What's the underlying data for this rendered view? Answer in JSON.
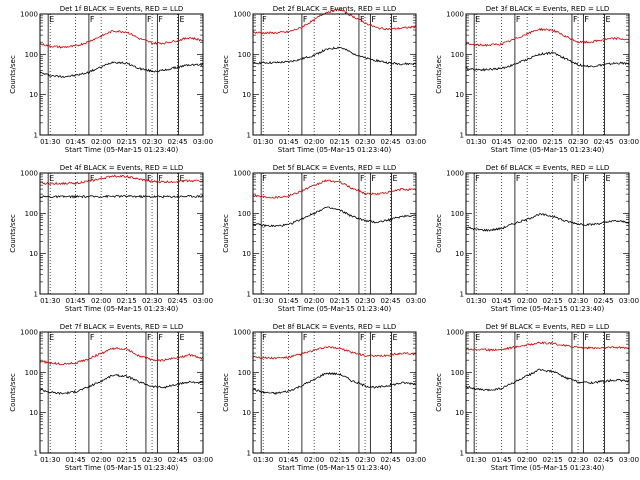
{
  "figure": {
    "xlabel": "Start Time (05-Mar-15 01:23:40)",
    "ylabel": "Counts/sec"
  },
  "chart_data": [
    {
      "type": "line",
      "title": "Det 1f BLACK = Events, RED = LLD",
      "xlabel": "Start Time (05-Mar-15 01:23:40)",
      "ylabel": "Counts/sec",
      "yscale": "log",
      "xlim": [
        "01:24",
        "03:00"
      ],
      "ylim": [
        1,
        1000
      ],
      "x_ticks": [
        "01:30",
        "01:45",
        "02:00",
        "02:15",
        "02:30",
        "02:45",
        "03:00"
      ],
      "y_ticks": [
        "1",
        "10",
        "100",
        "1000"
      ],
      "x": [
        "01:24",
        "01:30",
        "01:37",
        "01:45",
        "01:52",
        "02:00",
        "02:07",
        "02:15",
        "02:22",
        "02:30",
        "02:37",
        "02:45",
        "02:52",
        "03:00"
      ],
      "series": [
        {
          "color": "#000000",
          "values": [
            35,
            30,
            28,
            30,
            35,
            48,
            65,
            60,
            45,
            38,
            40,
            48,
            55,
            55
          ]
        },
        {
          "color": "#d40000",
          "values": [
            180,
            160,
            150,
            160,
            200,
            280,
            380,
            360,
            250,
            190,
            190,
            220,
            260,
            220
          ]
        }
      ],
      "markers": [
        "E",
        "F",
        "F",
        "F",
        "E"
      ],
      "grid": false,
      "legend": "none"
    },
    {
      "type": "line",
      "title": "Det 2f BLACK = Events, RED = LLD",
      "xlabel": "Start Time (05-Mar-15 01:23:40)",
      "ylabel": "Counts/sec",
      "yscale": "log",
      "xlim": [
        "01:24",
        "03:00"
      ],
      "ylim": [
        1,
        1000
      ],
      "x_ticks": [
        "01:30",
        "01:45",
        "02:00",
        "02:15",
        "02:30",
        "02:45",
        "03:00"
      ],
      "y_ticks": [
        "1",
        "10",
        "100",
        "1000"
      ],
      "x": [
        "01:24",
        "01:30",
        "01:37",
        "01:45",
        "01:52",
        "02:00",
        "02:07",
        "02:15",
        "02:22",
        "02:30",
        "02:37",
        "02:45",
        "02:52",
        "03:00"
      ],
      "series": [
        {
          "color": "#000000",
          "values": [
            60,
            62,
            62,
            65,
            75,
            95,
            130,
            150,
            110,
            80,
            70,
            60,
            58,
            58
          ]
        },
        {
          "color": "#d40000",
          "values": [
            350,
            340,
            340,
            360,
            450,
            700,
            1100,
            1300,
            900,
            600,
            450,
            420,
            450,
            480
          ]
        }
      ],
      "markers": [
        "F",
        "F",
        "F",
        "F",
        "E"
      ],
      "grid": false,
      "legend": "none"
    },
    {
      "type": "line",
      "title": "Det 3f BLACK = Events, RED = LLD",
      "xlabel": "Start Time (05-Mar-15 01:23:40)",
      "ylabel": "Counts/sec",
      "yscale": "log",
      "xlim": [
        "01:24",
        "03:00"
      ],
      "ylim": [
        1,
        1000
      ],
      "x_ticks": [
        "01:30",
        "01:45",
        "02:00",
        "02:15",
        "02:30",
        "02:45",
        "03:00"
      ],
      "y_ticks": [
        "1",
        "10",
        "100",
        "1000"
      ],
      "x": [
        "01:24",
        "01:30",
        "01:37",
        "01:45",
        "01:52",
        "02:00",
        "02:07",
        "02:15",
        "02:22",
        "02:30",
        "02:37",
        "02:45",
        "02:52",
        "03:00"
      ],
      "series": [
        {
          "color": "#000000",
          "values": [
            45,
            42,
            42,
            45,
            55,
            75,
            100,
            110,
            80,
            55,
            50,
            55,
            60,
            60
          ]
        },
        {
          "color": "#d40000",
          "values": [
            180,
            170,
            170,
            180,
            230,
            320,
            420,
            400,
            280,
            200,
            200,
            230,
            250,
            230
          ]
        }
      ],
      "markers": [
        "E",
        "F",
        "F",
        "F",
        "E"
      ],
      "grid": false,
      "legend": "none"
    },
    {
      "type": "line",
      "title": "Det 4f BLACK = Events, RED = LLD",
      "xlabel": "Start Time (05-Mar-15 01:23:40)",
      "ylabel": "Counts/sec",
      "yscale": "log",
      "xlim": [
        "01:24",
        "03:00"
      ],
      "ylim": [
        1,
        1000
      ],
      "x_ticks": [
        "01:30",
        "01:45",
        "02:00",
        "02:15",
        "02:30",
        "02:45",
        "03:00"
      ],
      "y_ticks": [
        "1",
        "10",
        "100",
        "1000"
      ],
      "x": [
        "01:24",
        "01:30",
        "01:37",
        "01:45",
        "01:52",
        "02:00",
        "02:07",
        "02:15",
        "02:22",
        "02:30",
        "02:37",
        "02:45",
        "02:52",
        "03:00"
      ],
      "series": [
        {
          "color": "#000000",
          "values": [
            260,
            258,
            258,
            260,
            260,
            262,
            265,
            265,
            262,
            260,
            260,
            262,
            265,
            265
          ]
        },
        {
          "color": "#d40000",
          "values": [
            560,
            550,
            550,
            560,
            620,
            720,
            850,
            820,
            700,
            620,
            600,
            620,
            650,
            640
          ]
        }
      ],
      "markers": [
        "E",
        "F",
        "F",
        "F",
        "E"
      ],
      "grid": false,
      "legend": "none"
    },
    {
      "type": "line",
      "title": "Det 5f BLACK = Events, RED = LLD",
      "xlabel": "Start Time (05-Mar-15 01:23:40)",
      "ylabel": "Counts/sec",
      "yscale": "log",
      "xlim": [
        "01:24",
        "03:00"
      ],
      "ylim": [
        1,
        1000
      ],
      "x_ticks": [
        "01:30",
        "01:45",
        "02:00",
        "02:15",
        "02:30",
        "02:45",
        "03:00"
      ],
      "y_ticks": [
        "1",
        "10",
        "100",
        "1000"
      ],
      "x": [
        "01:24",
        "01:30",
        "01:37",
        "01:45",
        "01:52",
        "02:00",
        "02:07",
        "02:15",
        "02:22",
        "02:30",
        "02:37",
        "02:45",
        "02:52",
        "03:00"
      ],
      "series": [
        {
          "color": "#000000",
          "values": [
            55,
            50,
            48,
            52,
            70,
            100,
            140,
            120,
            85,
            65,
            60,
            70,
            85,
            90
          ]
        },
        {
          "color": "#d40000",
          "values": [
            280,
            260,
            250,
            270,
            350,
            480,
            650,
            600,
            420,
            310,
            300,
            340,
            400,
            380
          ]
        }
      ],
      "markers": [
        "F",
        "F",
        "F",
        "F",
        "E"
      ],
      "grid": false,
      "legend": "none"
    },
    {
      "type": "line",
      "title": "Det 6f BLACK = Events, RED = LLD",
      "xlabel": "Start Time (05-Mar-15 01:23:40)",
      "ylabel": "Counts/sec",
      "yscale": "log",
      "xlim": [
        "01:24",
        "03:00"
      ],
      "ylim": [
        1,
        1000
      ],
      "x_ticks": [
        "01:30",
        "01:45",
        "02:00",
        "02:15",
        "02:30",
        "02:45",
        "03:00"
      ],
      "y_ticks": [
        "1",
        "10",
        "100",
        "1000"
      ],
      "x": [
        "01:24",
        "01:30",
        "01:37",
        "01:45",
        "01:52",
        "02:00",
        "02:07",
        "02:15",
        "02:22",
        "02:30",
        "02:37",
        "02:45",
        "02:52",
        "03:00"
      ],
      "series": [
        {
          "color": "#000000",
          "values": [
            45,
            40,
            38,
            42,
            55,
            70,
            95,
            85,
            65,
            55,
            52,
            58,
            65,
            60
          ]
        }
      ],
      "markers": [
        "F",
        "F",
        "F",
        "F",
        "E"
      ],
      "grid": false,
      "legend": "none"
    },
    {
      "type": "line",
      "title": "Det 7f BLACK = Events, RED = LLD",
      "xlabel": "Start Time (05-Mar-15 01:23:40)",
      "ylabel": "Counts/sec",
      "yscale": "log",
      "xlim": [
        "01:24",
        "03:00"
      ],
      "ylim": [
        1,
        1000
      ],
      "x_ticks": [
        "01:30",
        "01:45",
        "02:00",
        "02:15",
        "02:30",
        "02:45",
        "03:00"
      ],
      "y_ticks": [
        "1",
        "10",
        "100",
        "1000"
      ],
      "x": [
        "01:24",
        "01:30",
        "01:37",
        "01:45",
        "01:52",
        "02:00",
        "02:07",
        "02:15",
        "02:22",
        "02:30",
        "02:37",
        "02:45",
        "02:52",
        "03:00"
      ],
      "series": [
        {
          "color": "#000000",
          "values": [
            38,
            32,
            30,
            33,
            42,
            60,
            85,
            80,
            58,
            45,
            42,
            50,
            58,
            55
          ]
        },
        {
          "color": "#d40000",
          "values": [
            190,
            170,
            160,
            170,
            210,
            290,
            390,
            370,
            260,
            200,
            200,
            230,
            270,
            220
          ]
        }
      ],
      "markers": [
        "E",
        "F",
        "F",
        "F",
        "E"
      ],
      "grid": false,
      "legend": "none"
    },
    {
      "type": "line",
      "title": "Det 8f BLACK = Events, RED = LLD",
      "xlabel": "Start Time (05-Mar-15 01:23:40)",
      "ylabel": "Counts/sec",
      "yscale": "log",
      "xlim": [
        "01:24",
        "03:00"
      ],
      "ylim": [
        1,
        1000
      ],
      "x_ticks": [
        "01:30",
        "01:45",
        "02:00",
        "02:15",
        "02:30",
        "02:45",
        "03:00"
      ],
      "y_ticks": [
        "1",
        "10",
        "100",
        "1000"
      ],
      "x": [
        "01:24",
        "01:30",
        "01:37",
        "01:45",
        "01:52",
        "02:00",
        "02:07",
        "02:15",
        "02:22",
        "02:30",
        "02:37",
        "02:45",
        "02:52",
        "03:00"
      ],
      "series": [
        {
          "color": "#000000",
          "values": [
            38,
            32,
            30,
            34,
            45,
            65,
            95,
            90,
            62,
            46,
            42,
            48,
            55,
            52
          ]
        },
        {
          "color": "#d40000",
          "values": [
            250,
            230,
            225,
            235,
            280,
            350,
            420,
            400,
            310,
            260,
            250,
            270,
            300,
            280
          ]
        }
      ],
      "markers": [
        "F",
        "F",
        "F",
        "F",
        "E"
      ],
      "grid": false,
      "legend": "none"
    },
    {
      "type": "line",
      "title": "Det 9f BLACK = Events, RED = LLD",
      "xlabel": "Start Time (05-Mar-15 01:23:40)",
      "ylabel": "Counts/sec",
      "yscale": "log",
      "xlim": [
        "01:24",
        "03:00"
      ],
      "ylim": [
        1,
        1000
      ],
      "x_ticks": [
        "01:30",
        "01:45",
        "02:00",
        "02:15",
        "02:30",
        "02:45",
        "03:00"
      ],
      "y_ticks": [
        "1",
        "10",
        "100",
        "1000"
      ],
      "x": [
        "01:24",
        "01:30",
        "01:37",
        "01:45",
        "01:52",
        "02:00",
        "02:07",
        "02:15",
        "02:22",
        "02:30",
        "02:37",
        "02:45",
        "02:52",
        "03:00"
      ],
      "series": [
        {
          "color": "#000000",
          "values": [
            45,
            38,
            36,
            40,
            55,
            80,
            115,
            105,
            75,
            58,
            55,
            60,
            65,
            60
          ]
        },
        {
          "color": "#d40000",
          "values": [
            380,
            370,
            360,
            370,
            420,
            480,
            540,
            520,
            460,
            420,
            400,
            400,
            420,
            400
          ]
        }
      ],
      "markers": [
        "E",
        "F",
        "F",
        "F",
        "E"
      ],
      "grid": false,
      "legend": "none"
    }
  ]
}
